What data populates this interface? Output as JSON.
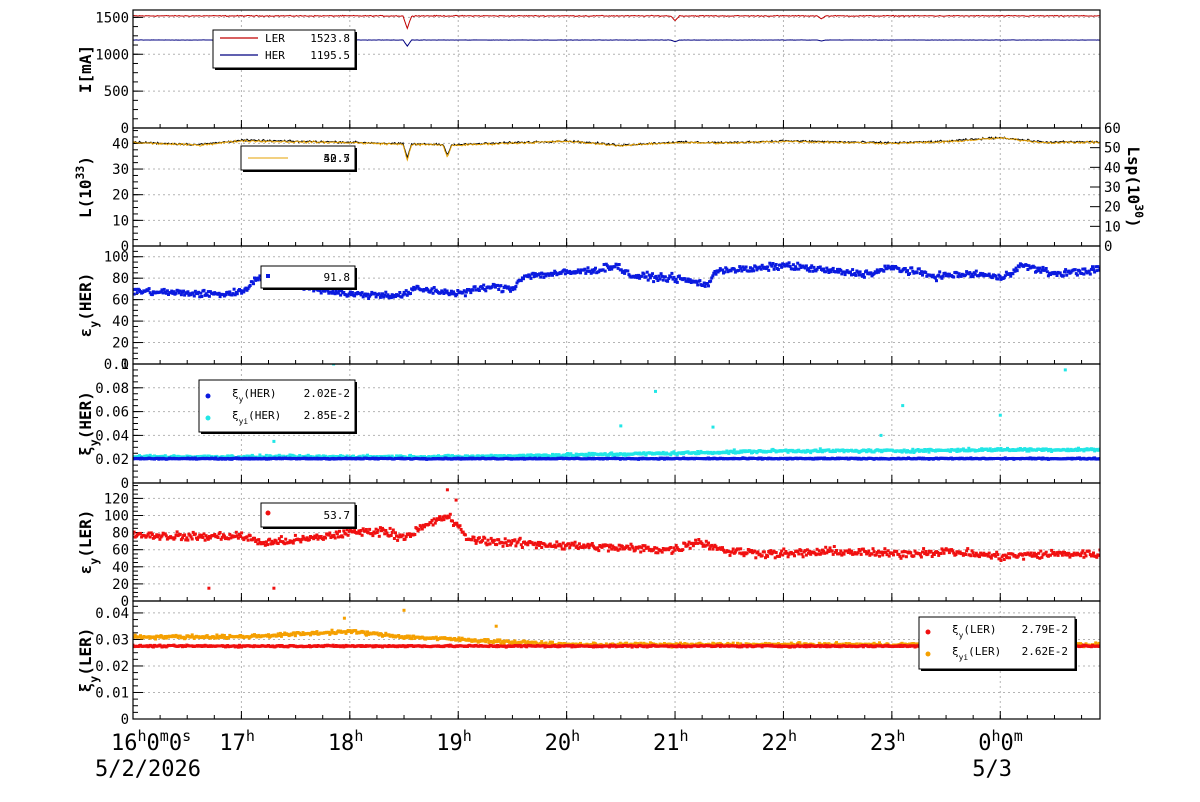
{
  "colors": {
    "ler_current": "#c00000",
    "her_current": "#000080",
    "luminosity": "#000000",
    "lsp": "#e6a000",
    "blue": "#0a1adf",
    "cyan": "#22e6e6",
    "red": "#f01010",
    "orange": "#f5a000",
    "grid": "#b4b4b4"
  },
  "x_axis": {
    "ticks": [
      {
        "hour": 16,
        "text": "16",
        "suffix": [
          {
            "sup": "h"
          },
          {
            "t": "0"
          },
          {
            "sup": "m"
          },
          {
            "t": "0"
          },
          {
            "sup": "s"
          }
        ]
      },
      {
        "hour": 17,
        "text": "17",
        "suffix": [
          {
            "sup": "h"
          }
        ]
      },
      {
        "hour": 18,
        "text": "18",
        "suffix": [
          {
            "sup": "h"
          }
        ]
      },
      {
        "hour": 19,
        "text": "19",
        "suffix": [
          {
            "sup": "h"
          }
        ]
      },
      {
        "hour": 20,
        "text": "20",
        "suffix": [
          {
            "sup": "h"
          }
        ]
      },
      {
        "hour": 21,
        "text": "21",
        "suffix": [
          {
            "sup": "h"
          }
        ]
      },
      {
        "hour": 22,
        "text": "22",
        "suffix": [
          {
            "sup": "h"
          }
        ]
      },
      {
        "hour": 23,
        "text": "23",
        "suffix": [
          {
            "sup": "h"
          }
        ]
      },
      {
        "hour": 24,
        "text": "0",
        "suffix": [
          {
            "sup": "h"
          },
          {
            "t": "0"
          },
          {
            "sup": "m"
          }
        ]
      }
    ],
    "dates": [
      {
        "hour": 16,
        "text": "5/2/2026"
      },
      {
        "hour": 24,
        "text": "5/3"
      }
    ],
    "range_hours": [
      16,
      24.92
    ]
  },
  "panels": [
    {
      "id": "current",
      "ylabel": [
        {
          "t": "I[mA]"
        }
      ],
      "yticks": [
        "0",
        "500",
        "1000",
        "1500"
      ],
      "ylim": [
        0,
        1600
      ],
      "yvals": [
        0,
        500,
        1000,
        1500
      ]
    },
    {
      "id": "luminosity",
      "ylabel": [
        {
          "t": "L(10"
        },
        {
          "sup": "33"
        },
        {
          "t": ")"
        }
      ],
      "yticks": [
        "0",
        "10",
        "20",
        "30",
        "40"
      ],
      "ylim": [
        0,
        46
      ],
      "yvals": [
        0,
        10,
        20,
        30,
        40
      ],
      "right_label": [
        {
          "t": "Lsp(10"
        },
        {
          "sup": "30"
        },
        {
          "t": ")"
        }
      ],
      "right_ticks": [
        "0",
        "10",
        "20",
        "30",
        "40",
        "50",
        "60"
      ]
    },
    {
      "id": "emit_her",
      "ylabel": [
        {
          "t": "ε"
        },
        {
          "sub": "y"
        },
        {
          "t": "(HER)"
        }
      ],
      "yticks": [
        "0",
        "20",
        "40",
        "60",
        "80",
        "100"
      ],
      "ylim": [
        0,
        110
      ],
      "yvals": [
        0,
        20,
        40,
        60,
        80,
        100
      ]
    },
    {
      "id": "xi_her",
      "ylabel": [
        {
          "t": "ξ"
        },
        {
          "sub": "y"
        },
        {
          "t": "(HER)"
        }
      ],
      "yticks": [
        "0",
        "0.02",
        "0.04",
        "0.06",
        "0.08",
        "0.1"
      ],
      "ylim": [
        0,
        0.1
      ],
      "yvals": [
        0,
        0.02,
        0.04,
        0.06,
        0.08,
        0.1
      ]
    },
    {
      "id": "emit_ler",
      "ylabel": [
        {
          "t": "ε"
        },
        {
          "sub": "y"
        },
        {
          "t": "(LER)"
        }
      ],
      "yticks": [
        "0",
        "20",
        "40",
        "60",
        "80",
        "100",
        "120"
      ],
      "ylim": [
        0,
        138
      ],
      "yvals": [
        0,
        20,
        40,
        60,
        80,
        100,
        120
      ]
    },
    {
      "id": "xi_ler",
      "ylabel": [
        {
          "t": "ξ"
        },
        {
          "sub": "y"
        },
        {
          "t": "(LER)"
        }
      ],
      "yticks": [
        "0",
        "0.01",
        "0.02",
        "0.03",
        "0.04"
      ],
      "ylim": [
        0,
        0.0445
      ],
      "yvals": [
        0,
        0.01,
        0.02,
        0.03,
        0.04
      ]
    }
  ],
  "legends": {
    "current": [
      {
        "label": "LER",
        "value": "1523.8",
        "color": "#c00000"
      },
      {
        "label": "HER",
        "value": "1195.5",
        "color": "#000080"
      }
    ],
    "luminosity": {
      "value_a": "40.7",
      "value_b": "52.5"
    },
    "emit_her": {
      "value": "91.8"
    },
    "xi_her": [
      {
        "label": [
          {
            "t": "ξ"
          },
          {
            "sub": "y"
          },
          {
            "t": "(HER)"
          }
        ],
        "value": "2.02E-2",
        "color": "#0a1adf"
      },
      {
        "label": [
          {
            "t": "ξ"
          },
          {
            "sub": "yi"
          },
          {
            "t": "(HER)"
          }
        ],
        "value": "2.85E-2",
        "color": "#22e6e6"
      }
    ],
    "emit_ler": {
      "value": "53.7"
    },
    "xi_ler": [
      {
        "label": [
          {
            "t": "ξ"
          },
          {
            "sub": "y"
          },
          {
            "t": "(LER)"
          }
        ],
        "value": "2.79E-2",
        "color": "#f01010"
      },
      {
        "label": [
          {
            "t": "ξ"
          },
          {
            "sub": "yi"
          },
          {
            "t": "(LER)"
          }
        ],
        "value": "2.62E-2",
        "color": "#f5a000"
      }
    ]
  },
  "chart_data": [
    {
      "type": "line",
      "x_unit": "hour of day (5/2/2026 16:00 to 5/3 ~00:55)",
      "ylabel": "I[mA]",
      "ylim": [
        0,
        1600
      ],
      "grid": true,
      "legend": "top-left",
      "series": [
        {
          "name": "LER",
          "baseline": 1520,
          "noise": 8,
          "dips": [
            [
              18.53,
              1350
            ],
            [
              21.0,
              1455
            ],
            [
              22.35,
              1480
            ]
          ],
          "points": 900
        },
        {
          "name": "HER",
          "baseline": 1193,
          "noise": 2,
          "dips": [
            [
              18.53,
              1110
            ],
            [
              21.0,
              1170
            ],
            [
              22.35,
              1180
            ]
          ],
          "points": 900
        }
      ]
    },
    {
      "type": "line",
      "ylabel": "L(10^33)",
      "ylim": [
        0,
        46
      ],
      "right_axis": {
        "label": "Lsp(10^30)",
        "range": [
          0,
          60
        ]
      },
      "grid": true,
      "legend": "top-left",
      "series": [
        {
          "name": "L",
          "anchors": [
            [
              16,
              40.5
            ],
            [
              16.6,
              39.5
            ],
            [
              17,
              41.2
            ],
            [
              17.5,
              40.8
            ],
            [
              18,
              40.5
            ],
            [
              18.5,
              39.8
            ],
            [
              19,
              39.5
            ],
            [
              19.5,
              40.3
            ],
            [
              20,
              41
            ],
            [
              20.5,
              39.3
            ],
            [
              21,
              40.5
            ],
            [
              21.5,
              40.3
            ],
            [
              22,
              41
            ],
            [
              22.5,
              40.6
            ],
            [
              23,
              40.2
            ],
            [
              23.5,
              40.8
            ],
            [
              24,
              42.3
            ],
            [
              24.4,
              40.5
            ],
            [
              24.92,
              40.6
            ]
          ],
          "noise": 0.5,
          "dips": [
            [
              18.53,
              34.5
            ],
            [
              18.9,
              35.5
            ]
          ],
          "points": 900
        },
        {
          "name": "Lsp",
          "anchors": [
            [
              16,
              40.3
            ],
            [
              16.6,
              39.3
            ],
            [
              17,
              41
            ],
            [
              17.5,
              40.6
            ],
            [
              18,
              40.3
            ],
            [
              18.5,
              39.6
            ],
            [
              19,
              39.3
            ],
            [
              19.5,
              40.1
            ],
            [
              20,
              40.8
            ],
            [
              20.5,
              39.1
            ],
            [
              21,
              40.3
            ],
            [
              21.5,
              40.1
            ],
            [
              22,
              40.8
            ],
            [
              22.5,
              40.4
            ],
            [
              23,
              40
            ],
            [
              23.5,
              40.6
            ],
            [
              24,
              42.1
            ],
            [
              24.4,
              40.3
            ],
            [
              24.92,
              40.4
            ]
          ],
          "noise": 0.5,
          "dips": [
            [
              18.53,
              33.5
            ],
            [
              18.9,
              34.5
            ]
          ],
          "points": 900
        }
      ]
    },
    {
      "type": "scatter",
      "ylabel": "εy(HER)",
      "ylim": [
        0,
        110
      ],
      "grid": true,
      "legend": "top-left",
      "series": [
        {
          "name": "εy(HER)",
          "anchors": [
            [
              16,
              68
            ],
            [
              16.5,
              66
            ],
            [
              16.8,
              65
            ],
            [
              17,
              67
            ],
            [
              17.15,
              80
            ],
            [
              17.4,
              78
            ],
            [
              17.7,
              70
            ],
            [
              18,
              65
            ],
            [
              18.5,
              64
            ],
            [
              18.6,
              70
            ],
            [
              19,
              66
            ],
            [
              19.3,
              72
            ],
            [
              19.5,
              70
            ],
            [
              19.6,
              82
            ],
            [
              20,
              85
            ],
            [
              20.3,
              88
            ],
            [
              20.45,
              92
            ],
            [
              20.6,
              82
            ],
            [
              21,
              80
            ],
            [
              21.3,
              74
            ],
            [
              21.4,
              88
            ],
            [
              21.7,
              88
            ],
            [
              22,
              92
            ],
            [
              22.5,
              86
            ],
            [
              22.8,
              84
            ],
            [
              23,
              90
            ],
            [
              23.4,
              82
            ],
            [
              23.8,
              84
            ],
            [
              24,
              80
            ],
            [
              24.2,
              92
            ],
            [
              24.5,
              84
            ],
            [
              24.92,
              88
            ]
          ],
          "noise": 4,
          "points": 900
        }
      ]
    },
    {
      "type": "scatter",
      "ylabel": "ξy(HER)",
      "ylim": [
        0,
        0.1
      ],
      "grid": true,
      "legend": "top-left",
      "series": [
        {
          "name": "ξy(HER)",
          "baseline": 0.0205,
          "noise": 0.0006,
          "points": 900
        },
        {
          "name": "ξyi(HER)",
          "anchors": [
            [
              16,
              0.022
            ],
            [
              17,
              0.022
            ],
            [
              18,
              0.022
            ],
            [
              19,
              0.022
            ],
            [
              20,
              0.0235
            ],
            [
              21,
              0.025
            ],
            [
              22,
              0.027
            ],
            [
              23,
              0.027
            ],
            [
              24,
              0.028
            ],
            [
              24.92,
              0.028
            ]
          ],
          "noise": 0.0015,
          "points": 900,
          "outliers": [
            [
              17.3,
              0.035
            ],
            [
              17.85,
              0.1
            ],
            [
              20.5,
              0.048
            ],
            [
              20.82,
              0.077
            ],
            [
              21.35,
              0.047
            ],
            [
              22.9,
              0.04
            ],
            [
              23.1,
              0.065
            ],
            [
              24.0,
              0.057
            ],
            [
              24.6,
              0.095
            ]
          ]
        }
      ]
    },
    {
      "type": "scatter",
      "ylabel": "εy(LER)",
      "ylim": [
        0,
        138
      ],
      "grid": true,
      "legend": "top-left",
      "series": [
        {
          "name": "εy(LER)",
          "anchors": [
            [
              16,
              78
            ],
            [
              16.5,
              75
            ],
            [
              17,
              76
            ],
            [
              17.2,
              68
            ],
            [
              17.6,
              72
            ],
            [
              18,
              80
            ],
            [
              18.3,
              82
            ],
            [
              18.5,
              75
            ],
            [
              18.9,
              100
            ],
            [
              19.1,
              72
            ],
            [
              19.5,
              68
            ],
            [
              20,
              65
            ],
            [
              20.5,
              62
            ],
            [
              21,
              60
            ],
            [
              21.2,
              70
            ],
            [
              21.5,
              58
            ],
            [
              22,
              55
            ],
            [
              22.5,
              58
            ],
            [
              23,
              55
            ],
            [
              23.5,
              58
            ],
            [
              24,
              52
            ],
            [
              24.5,
              55
            ],
            [
              24.92,
              55
            ]
          ],
          "noise": 6,
          "points": 900,
          "outliers": [
            [
              18.9,
              130
            ],
            [
              18.98,
              118
            ],
            [
              17.3,
              15
            ],
            [
              16.7,
              15
            ]
          ]
        }
      ]
    },
    {
      "type": "scatter",
      "ylabel": "ξy(LER)",
      "ylim": [
        0,
        0.0445
      ],
      "grid": true,
      "legend": "top-right",
      "series": [
        {
          "name": "ξy(LER)",
          "baseline": 0.0275,
          "noise": 0.0004,
          "points": 900
        },
        {
          "name": "ξyi(LER)",
          "anchors": [
            [
              16,
              0.031
            ],
            [
              17,
              0.031
            ],
            [
              17.5,
              0.032
            ],
            [
              18,
              0.033
            ],
            [
              18.5,
              0.031
            ],
            [
              19,
              0.03
            ],
            [
              19.5,
              0.029
            ],
            [
              20,
              0.028
            ],
            [
              21,
              0.028
            ],
            [
              22,
              0.028
            ],
            [
              23,
              0.028
            ],
            [
              24,
              0.0285
            ],
            [
              24.92,
              0.028
            ]
          ],
          "noise": 0.0008,
          "points": 900,
          "outliers": [
            [
              18.5,
              0.041
            ],
            [
              17.95,
              0.038
            ],
            [
              19.35,
              0.035
            ],
            [
              24.75,
              0.045
            ]
          ]
        }
      ]
    }
  ]
}
